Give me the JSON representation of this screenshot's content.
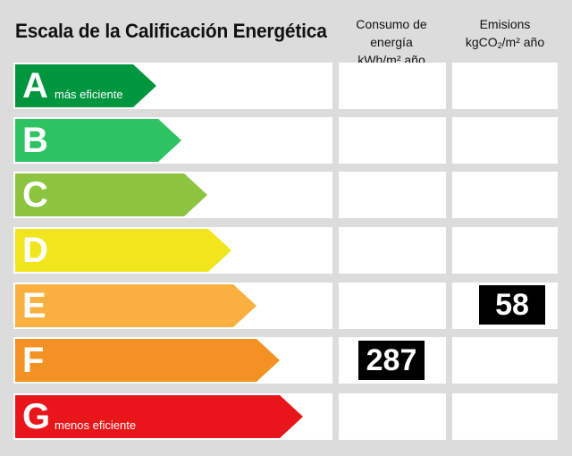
{
  "header": {
    "title": "Escala de la Calificación Energética",
    "col1_line1": "Consumo de energía",
    "col1_line2": "kWh/m² año",
    "col2_line1": "Emisions",
    "col2_kg": "kgCO",
    "col2_sub": "2",
    "col2_rest": "/m² año"
  },
  "rows": [
    {
      "letter": "A",
      "note": "más eficiente",
      "color": "#00963f",
      "consumo": "",
      "emision": ""
    },
    {
      "letter": "B",
      "note": "",
      "color": "#2ec262",
      "consumo": "",
      "emision": ""
    },
    {
      "letter": "C",
      "note": "",
      "color": "#8cc43f",
      "consumo": "",
      "emision": ""
    },
    {
      "letter": "D",
      "note": "",
      "color": "#f1e61d",
      "consumo": "",
      "emision": ""
    },
    {
      "letter": "E",
      "note": "",
      "color": "#f9b03f",
      "consumo": "",
      "emision": "58"
    },
    {
      "letter": "F",
      "note": "",
      "color": "#f39223",
      "consumo": "287",
      "emision": ""
    },
    {
      "letter": "G",
      "note": "menos eficiente",
      "color": "#e8161a",
      "consumo": "",
      "emision": ""
    }
  ]
}
